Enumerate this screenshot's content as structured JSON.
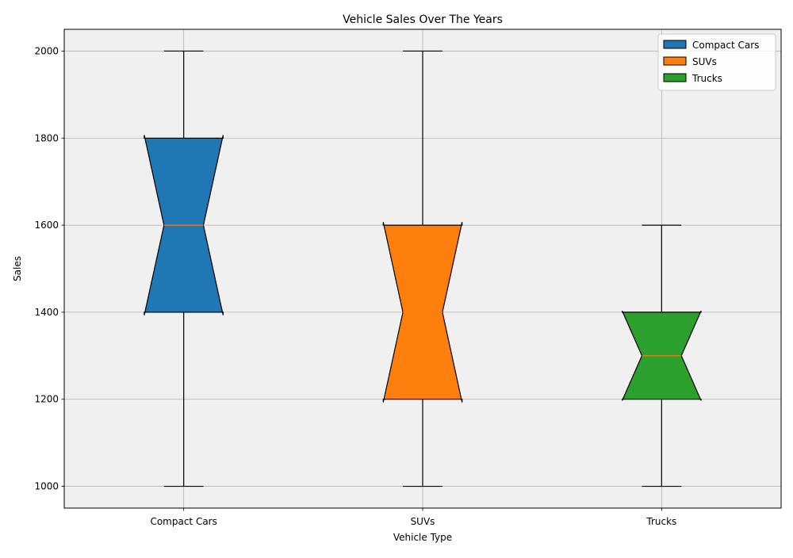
{
  "chart_data": {
    "type": "boxplot",
    "title": "Vehicle Sales Over The Years",
    "xlabel": "Vehicle Type",
    "ylabel": "Sales",
    "ylim": [
      950,
      2050
    ],
    "yticks": [
      1000,
      1200,
      1400,
      1600,
      1800,
      2000
    ],
    "grid": true,
    "notched": true,
    "legend_position": "top-right",
    "plot_background": "#f0f0f0",
    "median_color": "#ff7f0e",
    "categories": [
      "Compact Cars",
      "SUVs",
      "Trucks"
    ],
    "series": [
      {
        "name": "Compact Cars",
        "color": "#1f77b4",
        "whisker_low": 1000,
        "q1": 1400,
        "median": 1600,
        "q3": 1800,
        "whisker_high": 2000,
        "notch_low": 1393,
        "notch_high": 1807
      },
      {
        "name": "SUVs",
        "color": "#ff7f0e",
        "whisker_low": 1000,
        "q1": 1200,
        "median": 1400,
        "q3": 1600,
        "whisker_high": 2000,
        "notch_low": 1193,
        "notch_high": 1607
      },
      {
        "name": "Trucks",
        "color": "#2ca02c",
        "whisker_low": 1000,
        "q1": 1200,
        "median": 1300,
        "q3": 1400,
        "whisker_high": 1600,
        "notch_low": 1197,
        "notch_high": 1403
      }
    ]
  }
}
